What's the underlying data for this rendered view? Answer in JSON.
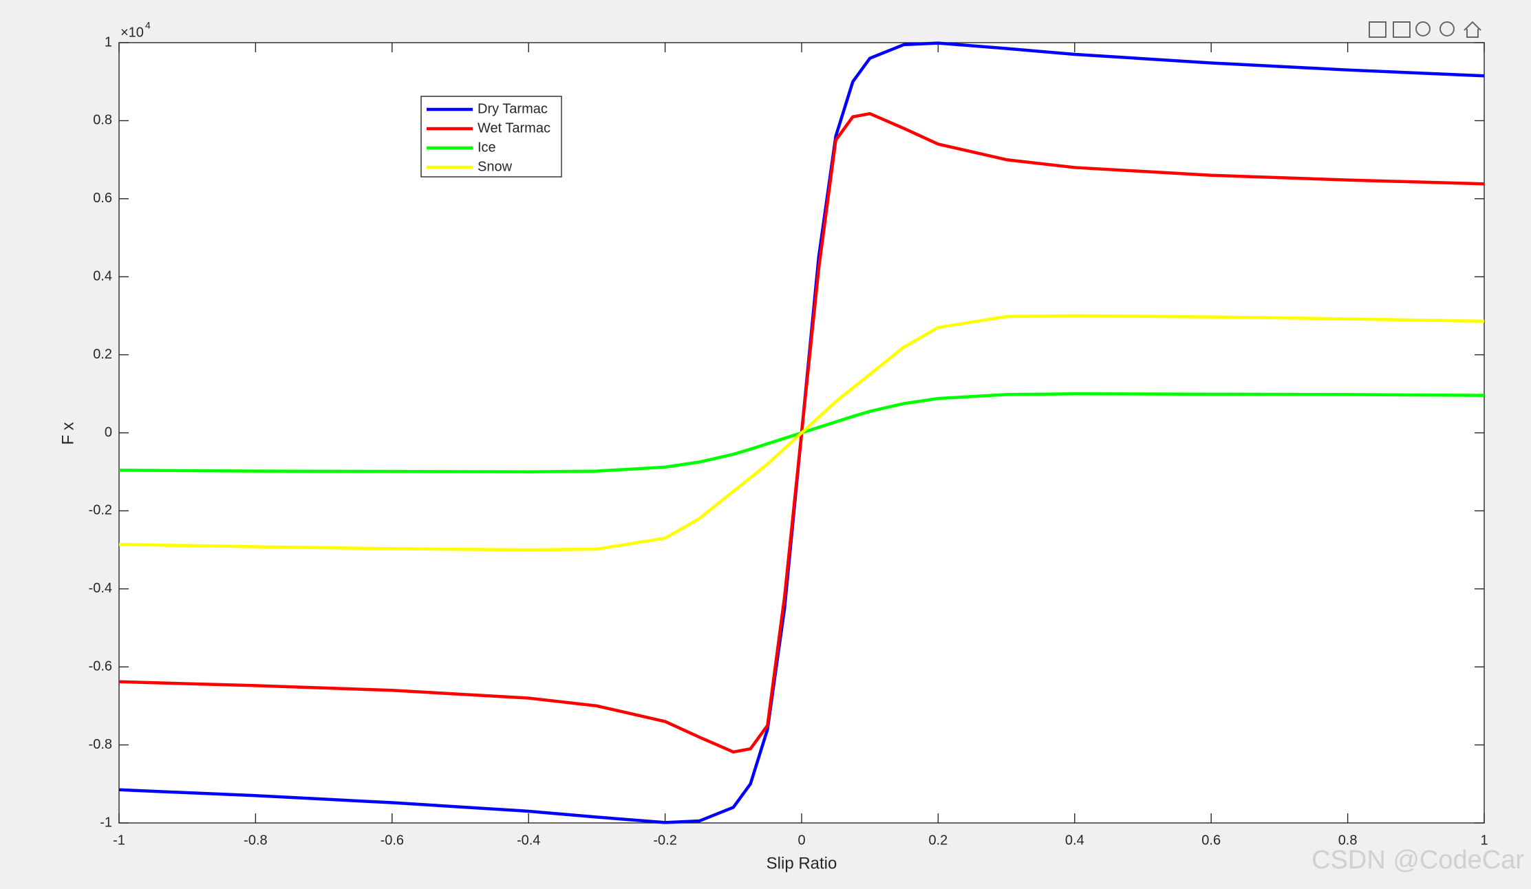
{
  "chart_data": {
    "type": "line",
    "x_label": "Slip Ratio",
    "y_label": "F x",
    "y_multiplier": "×10",
    "y_multiplier_exponent": "4",
    "watermark": "CSDN @CodeCar",
    "x": [
      -1,
      -0.8,
      -0.6,
      -0.4,
      -0.3,
      -0.2,
      -0.15,
      -0.1,
      -0.075,
      -0.05,
      -0.025,
      0,
      0.025,
      0.05,
      0.075,
      0.1,
      0.15,
      0.2,
      0.3,
      0.4,
      0.6,
      0.8,
      1
    ],
    "series": [
      {
        "name": "Dry Tarmac",
        "color": "#0000ff",
        "values": [
          -0.915,
          -0.93,
          -0.948,
          -0.97,
          -0.985,
          -0.999,
          -0.995,
          -0.96,
          -0.9,
          -0.76,
          -0.45,
          0,
          0.45,
          0.76,
          0.9,
          0.96,
          0.995,
          0.999,
          0.985,
          0.97,
          0.948,
          0.93,
          0.915
        ]
      },
      {
        "name": "Wet Tarmac",
        "color": "#ff0000",
        "values": [
          -0.638,
          -0.648,
          -0.66,
          -0.68,
          -0.7,
          -0.74,
          -0.78,
          -0.818,
          -0.81,
          -0.75,
          -0.42,
          0,
          0.42,
          0.75,
          0.81,
          0.818,
          0.78,
          0.74,
          0.7,
          0.68,
          0.66,
          0.648,
          0.638
        ]
      },
      {
        "name": "Ice",
        "color": "#00ff00",
        "values": [
          -0.096,
          -0.098,
          -0.099,
          -0.1,
          -0.098,
          -0.088,
          -0.075,
          -0.055,
          -0.042,
          -0.028,
          -0.014,
          0,
          0.014,
          0.028,
          0.042,
          0.055,
          0.075,
          0.088,
          0.098,
          0.1,
          0.099,
          0.098,
          0.096
        ]
      },
      {
        "name": "Snow",
        "color": "#ffff00",
        "values": [
          -0.286,
          -0.292,
          -0.297,
          -0.3,
          -0.298,
          -0.27,
          -0.22,
          -0.15,
          -0.115,
          -0.08,
          -0.04,
          0,
          0.04,
          0.08,
          0.115,
          0.15,
          0.22,
          0.27,
          0.298,
          0.3,
          0.297,
          0.292,
          0.286
        ]
      }
    ],
    "xlim": [
      -1,
      1
    ],
    "xticks": [
      -1,
      -0.8,
      -0.6,
      -0.4,
      -0.2,
      0,
      0.2,
      0.4,
      0.6,
      0.8,
      1
    ],
    "ylim": [
      -1,
      1
    ],
    "yticks": [
      -1,
      -0.8,
      -0.6,
      -0.4,
      -0.2,
      0,
      0.2,
      0.4,
      0.6,
      0.8,
      1
    ],
    "grid": false,
    "legend": "upper-left"
  }
}
